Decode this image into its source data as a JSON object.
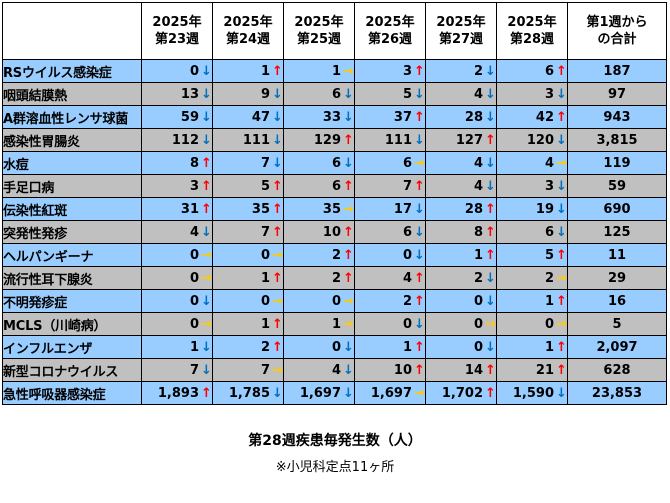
{
  "header": {
    "corner": "",
    "weeks": [
      [
        "2025年",
        "第23週"
      ],
      [
        "2025年",
        "第24週"
      ],
      [
        "2025年",
        "第25週"
      ],
      [
        "2025年",
        "第26週"
      ],
      [
        "2025年",
        "第27週"
      ],
      [
        "2025年",
        "第28週"
      ]
    ],
    "total": [
      "第1週から",
      "の合計"
    ]
  },
  "trend_symbols": {
    "up": "↑",
    "down": "↓",
    "flat": "→"
  },
  "colors": {
    "blue_row": "#99ccff",
    "grey_row": "#c0c0c0",
    "up": "#ff0000",
    "down": "#0070c0",
    "flat": "#ffcc00"
  },
  "rows": [
    {
      "name": "RSウイルス感染症",
      "bg": "blue",
      "cells": [
        [
          "0",
          "down"
        ],
        [
          "1",
          "up"
        ],
        [
          "1",
          "flat"
        ],
        [
          "3",
          "up"
        ],
        [
          "2",
          "down"
        ],
        [
          "6",
          "up"
        ]
      ],
      "total": "187"
    },
    {
      "name": "咽頭結膜熱",
      "bg": "grey",
      "cells": [
        [
          "13",
          "down"
        ],
        [
          "9",
          "down"
        ],
        [
          "6",
          "down"
        ],
        [
          "5",
          "down"
        ],
        [
          "4",
          "down"
        ],
        [
          "3",
          "down"
        ]
      ],
      "total": "97"
    },
    {
      "name": "A群溶血性レンサ球菌",
      "bg": "blue",
      "cells": [
        [
          "59",
          "down"
        ],
        [
          "47",
          "down"
        ],
        [
          "33",
          "down"
        ],
        [
          "37",
          "up"
        ],
        [
          "28",
          "down"
        ],
        [
          "42",
          "up"
        ]
      ],
      "total": "943"
    },
    {
      "name": "感染性胃腸炎",
      "bg": "grey",
      "cells": [
        [
          "112",
          "down"
        ],
        [
          "111",
          "down"
        ],
        [
          "129",
          "up"
        ],
        [
          "111",
          "down"
        ],
        [
          "127",
          "up"
        ],
        [
          "120",
          "down"
        ]
      ],
      "total": "3,815"
    },
    {
      "name": "水痘",
      "bg": "blue",
      "cells": [
        [
          "8",
          "up"
        ],
        [
          "7",
          "down"
        ],
        [
          "6",
          "down"
        ],
        [
          "6",
          "flat"
        ],
        [
          "4",
          "down"
        ],
        [
          "4",
          "flat"
        ]
      ],
      "total": "119"
    },
    {
      "name": "手足口病",
      "bg": "grey",
      "cells": [
        [
          "3",
          "up"
        ],
        [
          "5",
          "up"
        ],
        [
          "6",
          "up"
        ],
        [
          "7",
          "up"
        ],
        [
          "4",
          "down"
        ],
        [
          "3",
          "down"
        ]
      ],
      "total": "59"
    },
    {
      "name": "伝染性紅斑",
      "bg": "blue",
      "cells": [
        [
          "31",
          "up"
        ],
        [
          "35",
          "up"
        ],
        [
          "35",
          "flat"
        ],
        [
          "17",
          "down"
        ],
        [
          "28",
          "up"
        ],
        [
          "19",
          "down"
        ]
      ],
      "total": "690"
    },
    {
      "name": "突発性発疹",
      "bg": "grey",
      "cells": [
        [
          "4",
          "down"
        ],
        [
          "7",
          "up"
        ],
        [
          "10",
          "up"
        ],
        [
          "6",
          "down"
        ],
        [
          "8",
          "up"
        ],
        [
          "6",
          "down"
        ]
      ],
      "total": "125"
    },
    {
      "name": "ヘルパンギーナ",
      "bg": "blue",
      "cells": [
        [
          "0",
          "flat"
        ],
        [
          "0",
          "flat"
        ],
        [
          "2",
          "up"
        ],
        [
          "0",
          "down"
        ],
        [
          "1",
          "up"
        ],
        [
          "5",
          "up"
        ]
      ],
      "total": "11"
    },
    {
      "name": "流行性耳下腺炎",
      "bg": "grey",
      "cells": [
        [
          "0",
          "flat"
        ],
        [
          "1",
          "up"
        ],
        [
          "2",
          "up"
        ],
        [
          "4",
          "up"
        ],
        [
          "2",
          "down"
        ],
        [
          "2",
          "flat"
        ]
      ],
      "total": "29"
    },
    {
      "name": "不明発疹症",
      "bg": "blue",
      "cells": [
        [
          "0",
          "down"
        ],
        [
          "0",
          "flat"
        ],
        [
          "0",
          "flat"
        ],
        [
          "2",
          "up"
        ],
        [
          "0",
          "down"
        ],
        [
          "1",
          "up"
        ]
      ],
      "total": "16"
    },
    {
      "name": "MCLS（川崎病）",
      "bg": "grey",
      "cells": [
        [
          "0",
          "flat"
        ],
        [
          "1",
          "up"
        ],
        [
          "1",
          "flat"
        ],
        [
          "0",
          "down"
        ],
        [
          "0",
          "flat"
        ],
        [
          "0",
          "flat"
        ]
      ],
      "total": "5"
    },
    {
      "name": "インフルエンザ",
      "bg": "blue",
      "cells": [
        [
          "1",
          "down"
        ],
        [
          "2",
          "up"
        ],
        [
          "0",
          "down"
        ],
        [
          "1",
          "up"
        ],
        [
          "0",
          "down"
        ],
        [
          "1",
          "up"
        ]
      ],
      "total": "2,097"
    },
    {
      "name": "新型コロナウイルス",
      "bg": "grey",
      "cells": [
        [
          "7",
          "down"
        ],
        [
          "7",
          "flat"
        ],
        [
          "4",
          "down"
        ],
        [
          "10",
          "up"
        ],
        [
          "14",
          "up"
        ],
        [
          "21",
          "up"
        ]
      ],
      "total": "628"
    },
    {
      "name": "急性呼吸器感染症",
      "bg": "blue",
      "cells": [
        [
          "1,893",
          "up"
        ],
        [
          "1,785",
          "down"
        ],
        [
          "1,697",
          "down"
        ],
        [
          "1,697",
          "flat"
        ],
        [
          "1,702",
          "up"
        ],
        [
          "1,590",
          "down"
        ]
      ],
      "total": "23,853"
    }
  ],
  "caption": {
    "title": "第28週疾患毎発生数（人）",
    "note": "※小児科定点11ヶ所"
  }
}
